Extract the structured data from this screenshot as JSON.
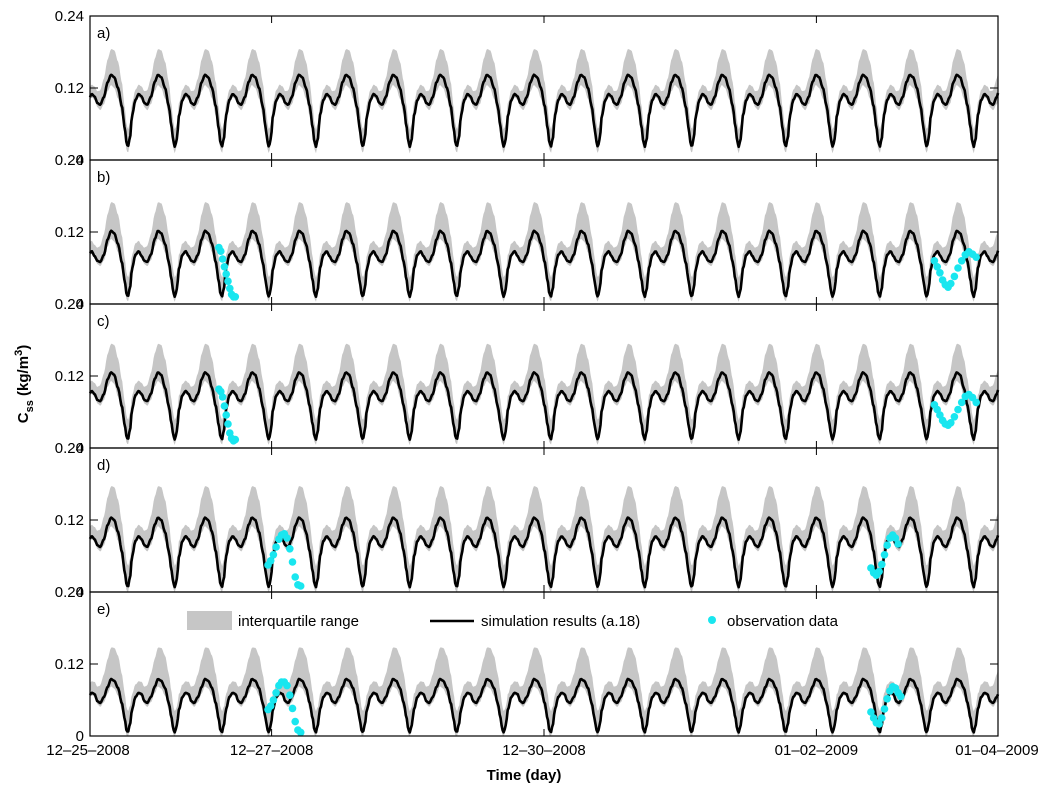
{
  "chart_data": {
    "type": "line",
    "ylabel": "C",
    "ylabel_sub": "ss",
    "ylabel_unit_open": " (kg/m",
    "ylabel_unit_sup": "3",
    "ylabel_unit_close": ")",
    "xlabel": "Time (day)",
    "x_unit": "day",
    "xlim": [
      0,
      10
    ],
    "x_ticks": [
      {
        "value": 0,
        "label": "12–25–2008"
      },
      {
        "value": 2,
        "label": "12–27–2008"
      },
      {
        "value": 5,
        "label": "12–30–2008"
      },
      {
        "value": 8,
        "label": "01–02–2009"
      },
      {
        "value": 10,
        "label": "01–04–2009"
      }
    ],
    "ylim": [
      0,
      0.24
    ],
    "y_ticks": [
      {
        "value": 0,
        "label": "0"
      },
      {
        "value": 0.12,
        "label": "0.12"
      },
      {
        "value": 0.24,
        "label": "0.24"
      }
    ],
    "legend": {
      "placement": "top (panel e)",
      "items": [
        {
          "label": "interquartile range",
          "kind": "band",
          "color": "#c6c6c6"
        },
        {
          "label": "simulation results (a.18)",
          "kind": "line",
          "color": "#000000"
        },
        {
          "label": "observation data",
          "kind": "marker",
          "color": "#19e6ef"
        }
      ]
    },
    "colors": {
      "band": "#c6c6c6",
      "line": "#000000",
      "obs": "#19e6ef"
    },
    "tidal_cycle": {
      "period_days": 0.5175,
      "phase_day": 0.05,
      "note": "simulation repeats each semidiurnal cycle; one cycle shape per panel (phase 0-1 -> concentration kg/m3)"
    },
    "panels": [
      {
        "label": "a)",
        "cycle_shape": [
          [
            0,
            0.106
          ],
          [
            0.06,
            0.095
          ],
          [
            0.12,
            0.092
          ],
          [
            0.2,
            0.105
          ],
          [
            0.28,
            0.13
          ],
          [
            0.35,
            0.142
          ],
          [
            0.42,
            0.138
          ],
          [
            0.5,
            0.12
          ],
          [
            0.58,
            0.09
          ],
          [
            0.64,
            0.055
          ],
          [
            0.68,
            0.03
          ],
          [
            0.71,
            0.022
          ],
          [
            0.75,
            0.035
          ],
          [
            0.8,
            0.075
          ],
          [
            0.87,
            0.1
          ],
          [
            0.94,
            0.11
          ],
          [
            1,
            0.106
          ]
        ],
        "band_upper_offset": 0.045,
        "band_lower_offset": 0.018,
        "observations": []
      },
      {
        "label": "b)",
        "cycle_shape": [
          [
            0,
            0.08
          ],
          [
            0.06,
            0.072
          ],
          [
            0.12,
            0.07
          ],
          [
            0.2,
            0.082
          ],
          [
            0.28,
            0.108
          ],
          [
            0.35,
            0.122
          ],
          [
            0.42,
            0.118
          ],
          [
            0.5,
            0.1
          ],
          [
            0.58,
            0.07
          ],
          [
            0.64,
            0.04
          ],
          [
            0.68,
            0.018
          ],
          [
            0.71,
            0.012
          ],
          [
            0.75,
            0.025
          ],
          [
            0.8,
            0.06
          ],
          [
            0.87,
            0.082
          ],
          [
            0.94,
            0.088
          ],
          [
            1,
            0.08
          ]
        ],
        "band_upper_offset": 0.05,
        "band_lower_offset": 0.014,
        "observations": [
          [
            1.42,
            0.094
          ],
          [
            1.44,
            0.088
          ],
          [
            1.46,
            0.075
          ],
          [
            1.48,
            0.062
          ],
          [
            1.5,
            0.05
          ],
          [
            1.52,
            0.038
          ],
          [
            1.54,
            0.026
          ],
          [
            1.56,
            0.016
          ],
          [
            1.58,
            0.012
          ],
          [
            1.6,
            0.012
          ],
          [
            9.3,
            0.072
          ],
          [
            9.33,
            0.062
          ],
          [
            9.36,
            0.052
          ],
          [
            9.39,
            0.04
          ],
          [
            9.42,
            0.032
          ],
          [
            9.45,
            0.028
          ],
          [
            9.48,
            0.034
          ],
          [
            9.52,
            0.046
          ],
          [
            9.56,
            0.06
          ],
          [
            9.6,
            0.072
          ],
          [
            9.64,
            0.082
          ],
          [
            9.68,
            0.087
          ],
          [
            9.72,
            0.083
          ],
          [
            9.76,
            0.078
          ]
        ]
      },
      {
        "label": "c)",
        "cycle_shape": [
          [
            0,
            0.09
          ],
          [
            0.06,
            0.08
          ],
          [
            0.12,
            0.078
          ],
          [
            0.2,
            0.09
          ],
          [
            0.28,
            0.115
          ],
          [
            0.35,
            0.126
          ],
          [
            0.42,
            0.122
          ],
          [
            0.5,
            0.1
          ],
          [
            0.58,
            0.07
          ],
          [
            0.64,
            0.04
          ],
          [
            0.68,
            0.02
          ],
          [
            0.71,
            0.014
          ],
          [
            0.75,
            0.028
          ],
          [
            0.8,
            0.065
          ],
          [
            0.87,
            0.088
          ],
          [
            0.94,
            0.095
          ],
          [
            1,
            0.09
          ]
        ],
        "band_upper_offset": 0.05,
        "band_lower_offset": 0.015,
        "observations": [
          [
            1.42,
            0.098
          ],
          [
            1.44,
            0.094
          ],
          [
            1.46,
            0.085
          ],
          [
            1.48,
            0.07
          ],
          [
            1.5,
            0.055
          ],
          [
            1.52,
            0.04
          ],
          [
            1.54,
            0.025
          ],
          [
            1.56,
            0.016
          ],
          [
            1.58,
            0.012
          ],
          [
            1.6,
            0.014
          ],
          [
            9.3,
            0.072
          ],
          [
            9.33,
            0.064
          ],
          [
            9.36,
            0.055
          ],
          [
            9.39,
            0.046
          ],
          [
            9.42,
            0.04
          ],
          [
            9.45,
            0.038
          ],
          [
            9.48,
            0.042
          ],
          [
            9.52,
            0.052
          ],
          [
            9.56,
            0.064
          ],
          [
            9.6,
            0.076
          ],
          [
            9.64,
            0.086
          ],
          [
            9.68,
            0.089
          ],
          [
            9.72,
            0.084
          ],
          [
            9.76,
            0.076
          ]
        ]
      },
      {
        "label": "d)",
        "cycle_shape": [
          [
            0,
            0.088
          ],
          [
            0.06,
            0.078
          ],
          [
            0.12,
            0.075
          ],
          [
            0.2,
            0.088
          ],
          [
            0.28,
            0.112
          ],
          [
            0.35,
            0.124
          ],
          [
            0.42,
            0.12
          ],
          [
            0.5,
            0.1
          ],
          [
            0.58,
            0.068
          ],
          [
            0.64,
            0.035
          ],
          [
            0.68,
            0.014
          ],
          [
            0.71,
            0.008
          ],
          [
            0.75,
            0.022
          ],
          [
            0.8,
            0.06
          ],
          [
            0.87,
            0.085
          ],
          [
            0.94,
            0.093
          ],
          [
            1,
            0.088
          ]
        ],
        "band_upper_offset": 0.055,
        "band_lower_offset": 0.015,
        "observations": [
          [
            1.96,
            0.045
          ],
          [
            1.99,
            0.052
          ],
          [
            2.02,
            0.062
          ],
          [
            2.05,
            0.075
          ],
          [
            2.08,
            0.088
          ],
          [
            2.11,
            0.095
          ],
          [
            2.14,
            0.097
          ],
          [
            2.17,
            0.09
          ],
          [
            2.2,
            0.072
          ],
          [
            2.23,
            0.05
          ],
          [
            2.26,
            0.025
          ],
          [
            2.29,
            0.012
          ],
          [
            2.32,
            0.01
          ],
          [
            8.6,
            0.04
          ],
          [
            8.63,
            0.032
          ],
          [
            8.66,
            0.028
          ],
          [
            8.69,
            0.034
          ],
          [
            8.72,
            0.046
          ],
          [
            8.75,
            0.062
          ],
          [
            8.78,
            0.078
          ],
          [
            8.81,
            0.09
          ],
          [
            8.84,
            0.095
          ],
          [
            8.87,
            0.09
          ],
          [
            8.9,
            0.08
          ]
        ]
      },
      {
        "label": "e)",
        "cycle_shape": [
          [
            0,
            0.07
          ],
          [
            0.06,
            0.058
          ],
          [
            0.12,
            0.055
          ],
          [
            0.2,
            0.065
          ],
          [
            0.28,
            0.082
          ],
          [
            0.35,
            0.095
          ],
          [
            0.42,
            0.092
          ],
          [
            0.5,
            0.08
          ],
          [
            0.58,
            0.055
          ],
          [
            0.64,
            0.03
          ],
          [
            0.68,
            0.01
          ],
          [
            0.71,
            0.006
          ],
          [
            0.75,
            0.018
          ],
          [
            0.8,
            0.045
          ],
          [
            0.87,
            0.065
          ],
          [
            0.94,
            0.072
          ],
          [
            1,
            0.07
          ]
        ],
        "band_upper_offset": 0.055,
        "band_lower_offset": 0.013,
        "observations": [
          [
            1.96,
            0.044
          ],
          [
            1.99,
            0.05
          ],
          [
            2.02,
            0.06
          ],
          [
            2.05,
            0.072
          ],
          [
            2.08,
            0.084
          ],
          [
            2.11,
            0.09
          ],
          [
            2.14,
            0.09
          ],
          [
            2.17,
            0.084
          ],
          [
            2.2,
            0.068
          ],
          [
            2.23,
            0.046
          ],
          [
            2.26,
            0.024
          ],
          [
            2.29,
            0.01
          ],
          [
            2.32,
            0.006
          ],
          [
            8.6,
            0.04
          ],
          [
            8.63,
            0.03
          ],
          [
            8.66,
            0.022
          ],
          [
            8.69,
            0.02
          ],
          [
            8.72,
            0.03
          ],
          [
            8.75,
            0.045
          ],
          [
            8.78,
            0.062
          ],
          [
            8.81,
            0.075
          ],
          [
            8.84,
            0.082
          ],
          [
            8.87,
            0.08
          ],
          [
            8.9,
            0.072
          ],
          [
            8.93,
            0.066
          ]
        ]
      }
    ]
  }
}
